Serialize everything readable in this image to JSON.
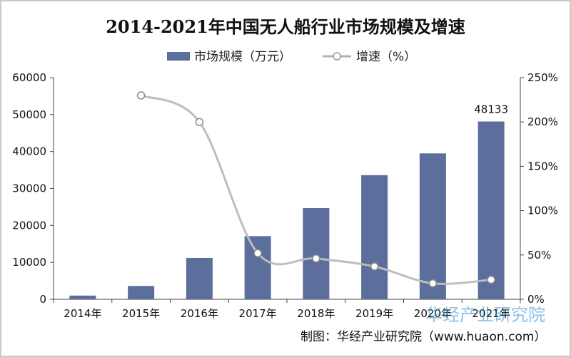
{
  "chart_data": {
    "type": "bar",
    "title": "2014-2021年中国无人船行业市场规模及增速",
    "categories": [
      "2014年",
      "2015年",
      "2016年",
      "2017年",
      "2018年",
      "2019年",
      "2020年",
      "2021年"
    ],
    "series": [
      {
        "name": "市场规模（万元）",
        "type": "bar",
        "axis": "left",
        "color": "#5b6e9c",
        "values": [
          1000,
          3600,
          11200,
          17100,
          24700,
          33600,
          39500,
          48133
        ]
      },
      {
        "name": "增速（%）",
        "type": "line",
        "axis": "right",
        "color": "#bdbdbd",
        "values": [
          null,
          230,
          200,
          52,
          46,
          37,
          18,
          22
        ]
      }
    ],
    "y_left": {
      "ylim": [
        0,
        60000
      ],
      "ticks": [
        "0",
        "10000",
        "20000",
        "30000",
        "40000",
        "50000",
        "60000"
      ]
    },
    "y_right": {
      "ylim": [
        0,
        250
      ],
      "ticks": [
        "0%",
        "50%",
        "100%",
        "150%",
        "200%",
        "250%"
      ]
    },
    "data_labels": [
      {
        "category": "2021年",
        "text": "48133"
      }
    ],
    "legend_position": "top",
    "grid": false
  },
  "source": "制图：华经产业研究院（www.huaon.com）",
  "watermark": "华经产业研究院"
}
